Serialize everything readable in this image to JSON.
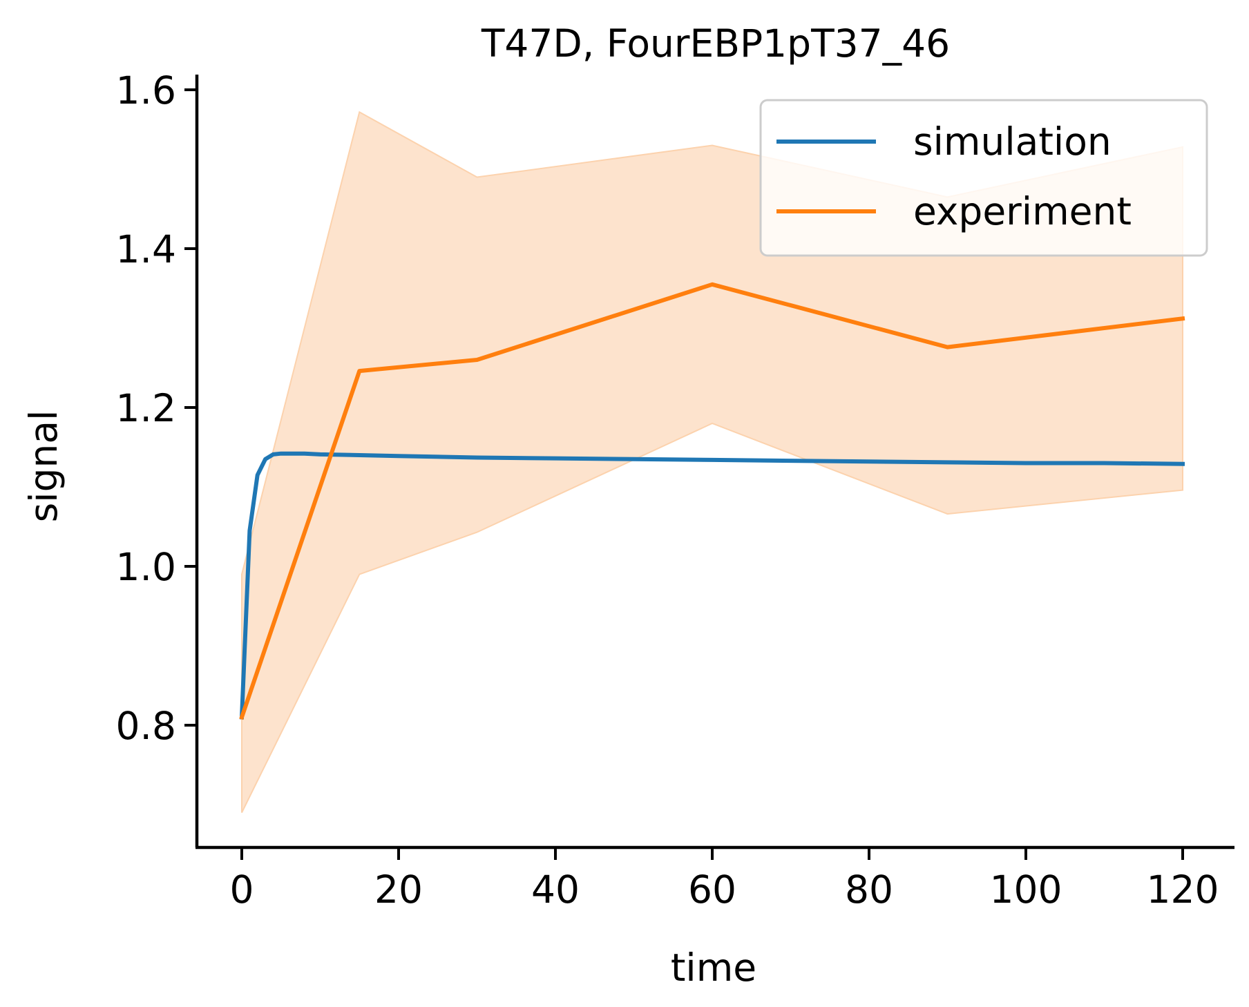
{
  "chart_data": {
    "type": "line",
    "title": "T47D, FourEBP1pT37_46",
    "xlabel": "time",
    "ylabel": "signal",
    "xlim": [
      -6,
      126
    ],
    "ylim": [
      0.65,
      1.62
    ],
    "x_ticks": [
      0,
      20,
      40,
      60,
      80,
      100,
      120
    ],
    "x_tick_labels": [
      "0",
      "20",
      "40",
      "60",
      "80",
      "100",
      "120"
    ],
    "y_ticks": [
      0.8,
      1.0,
      1.2,
      1.4,
      1.6
    ],
    "y_tick_labels": [
      "0.8",
      "1.0",
      "1.2",
      "1.4",
      "1.6"
    ],
    "grid": false,
    "legend_position": "top-right",
    "series": [
      {
        "name": "simulation",
        "color": "#1f77b4",
        "x": [
          0,
          1,
          2,
          3,
          4,
          5,
          6,
          8,
          10,
          15,
          20,
          30,
          40,
          50,
          60,
          70,
          80,
          90,
          100,
          110,
          120
        ],
        "y": [
          0.81,
          1.045,
          1.115,
          1.135,
          1.141,
          1.142,
          1.142,
          1.142,
          1.141,
          1.14,
          1.139,
          1.137,
          1.136,
          1.135,
          1.134,
          1.133,
          1.132,
          1.131,
          1.13,
          1.13,
          1.129
        ]
      },
      {
        "name": "experiment",
        "color": "#ff7f0e",
        "x": [
          0,
          15,
          30,
          60,
          90,
          120
        ],
        "y": [
          0.81,
          1.246,
          1.26,
          1.355,
          1.276,
          1.312
        ],
        "band_lower": [
          0.69,
          0.99,
          1.043,
          1.18,
          1.066,
          1.096
        ],
        "band_upper": [
          0.99,
          1.572,
          1.49,
          1.53,
          1.465,
          1.528
        ],
        "band_color": "#fde3cd"
      }
    ]
  }
}
